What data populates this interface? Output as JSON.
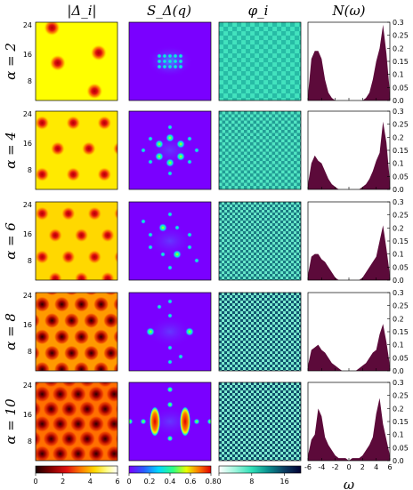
{
  "figure": {
    "headers": [
      "|Δ_i|",
      "S_Δ(q)",
      "φ_i",
      "N(ω)"
    ],
    "row_labels": [
      "α = 2",
      "α = 4",
      "α = 6",
      "α = 8",
      "α = 10"
    ],
    "alpha_values": [
      2,
      4,
      6,
      8,
      10
    ],
    "map_axis_ticks": [
      "24",
      "16",
      "8"
    ],
    "dos_axis_ticks": [
      "0.3",
      "0.25",
      "0.2",
      "0.15",
      "0.1",
      "0.05",
      "0.0"
    ],
    "dos_x_ticks": [
      "-6",
      "-4",
      "-2",
      "0",
      "2",
      "4",
      "6"
    ],
    "dos_xlabel": "ω",
    "colorbars": [
      {
        "panel": "|Δ_i|",
        "ticks": [
          "0",
          "2",
          "4",
          "6"
        ],
        "range": [
          0,
          6
        ],
        "colors": [
          "#1a0000",
          "#8a0000",
          "#e01010",
          "#ff7a00",
          "#ffd800",
          "#ffff90",
          "#ffffff"
        ]
      },
      {
        "panel": "S_Δ(q)",
        "ticks": [
          "0",
          "0.2",
          "0.4",
          "0.6",
          "0.8"
        ],
        "range": [
          0,
          0.8
        ],
        "colors": [
          "#7a00ff",
          "#2a5bff",
          "#00d8ff",
          "#30ff80",
          "#e8ff00",
          "#ff7a00",
          "#e00000"
        ]
      },
      {
        "panel": "φ_i",
        "ticks": [
          "0",
          "8",
          "16"
        ],
        "range": [
          0,
          20
        ],
        "colors": [
          "#ffffff",
          "#9df5dc",
          "#2fe0b8",
          "#0a8f8f",
          "#0b3d62",
          "#000033"
        ]
      }
    ],
    "dos_fill_color": "#5c0a3a"
  },
  "chart_data": {
    "type": "area",
    "title": "",
    "xlabel": "ω",
    "ylabel": "N(ω)",
    "xlim": [
      -6,
      6
    ],
    "ylim": [
      0,
      0.3
    ],
    "x": [
      -6,
      -5.5,
      -5,
      -4.5,
      -4,
      -3.5,
      -3,
      -2.5,
      -2,
      -1.5,
      -1,
      -0.5,
      0,
      0.5,
      1,
      1.5,
      2,
      2.5,
      3,
      3.5,
      4,
      4.5,
      5,
      5.5,
      6
    ],
    "series": [
      {
        "values": [
          0.02,
          0.16,
          0.19,
          0.19,
          0.16,
          0.08,
          0.03,
          0.01,
          0,
          0,
          0,
          0,
          0,
          0,
          0,
          0,
          0,
          0.01,
          0.03,
          0.08,
          0.15,
          0.2,
          0.29,
          0.18,
          0.03
        ]
      },
      {
        "values": [
          0.02,
          0.1,
          0.13,
          0.11,
          0.1,
          0.07,
          0.04,
          0.02,
          0.01,
          0,
          0,
          0,
          0,
          0,
          0,
          0,
          0.01,
          0.02,
          0.04,
          0.07,
          0.11,
          0.14,
          0.26,
          0.18,
          0.03
        ]
      },
      {
        "values": [
          0.02,
          0.09,
          0.1,
          0.1,
          0.08,
          0.07,
          0.05,
          0.03,
          0.01,
          0,
          0,
          0,
          0,
          0,
          0,
          0,
          0.01,
          0.03,
          0.05,
          0.07,
          0.09,
          0.15,
          0.21,
          0.12,
          0.02
        ]
      },
      {
        "values": [
          0.02,
          0.08,
          0.09,
          0.1,
          0.08,
          0.07,
          0.05,
          0.03,
          0.02,
          0.01,
          0,
          0,
          0,
          0,
          0,
          0.01,
          0.02,
          0.03,
          0.05,
          0.07,
          0.08,
          0.14,
          0.18,
          0.11,
          0.02
        ]
      },
      {
        "values": [
          0.02,
          0.08,
          0.1,
          0.2,
          0.17,
          0.09,
          0.06,
          0.04,
          0.02,
          0.01,
          0.01,
          0.01,
          0,
          0.01,
          0.01,
          0.01,
          0.02,
          0.04,
          0.06,
          0.09,
          0.18,
          0.24,
          0.14,
          0.08,
          0.02
        ]
      }
    ]
  }
}
